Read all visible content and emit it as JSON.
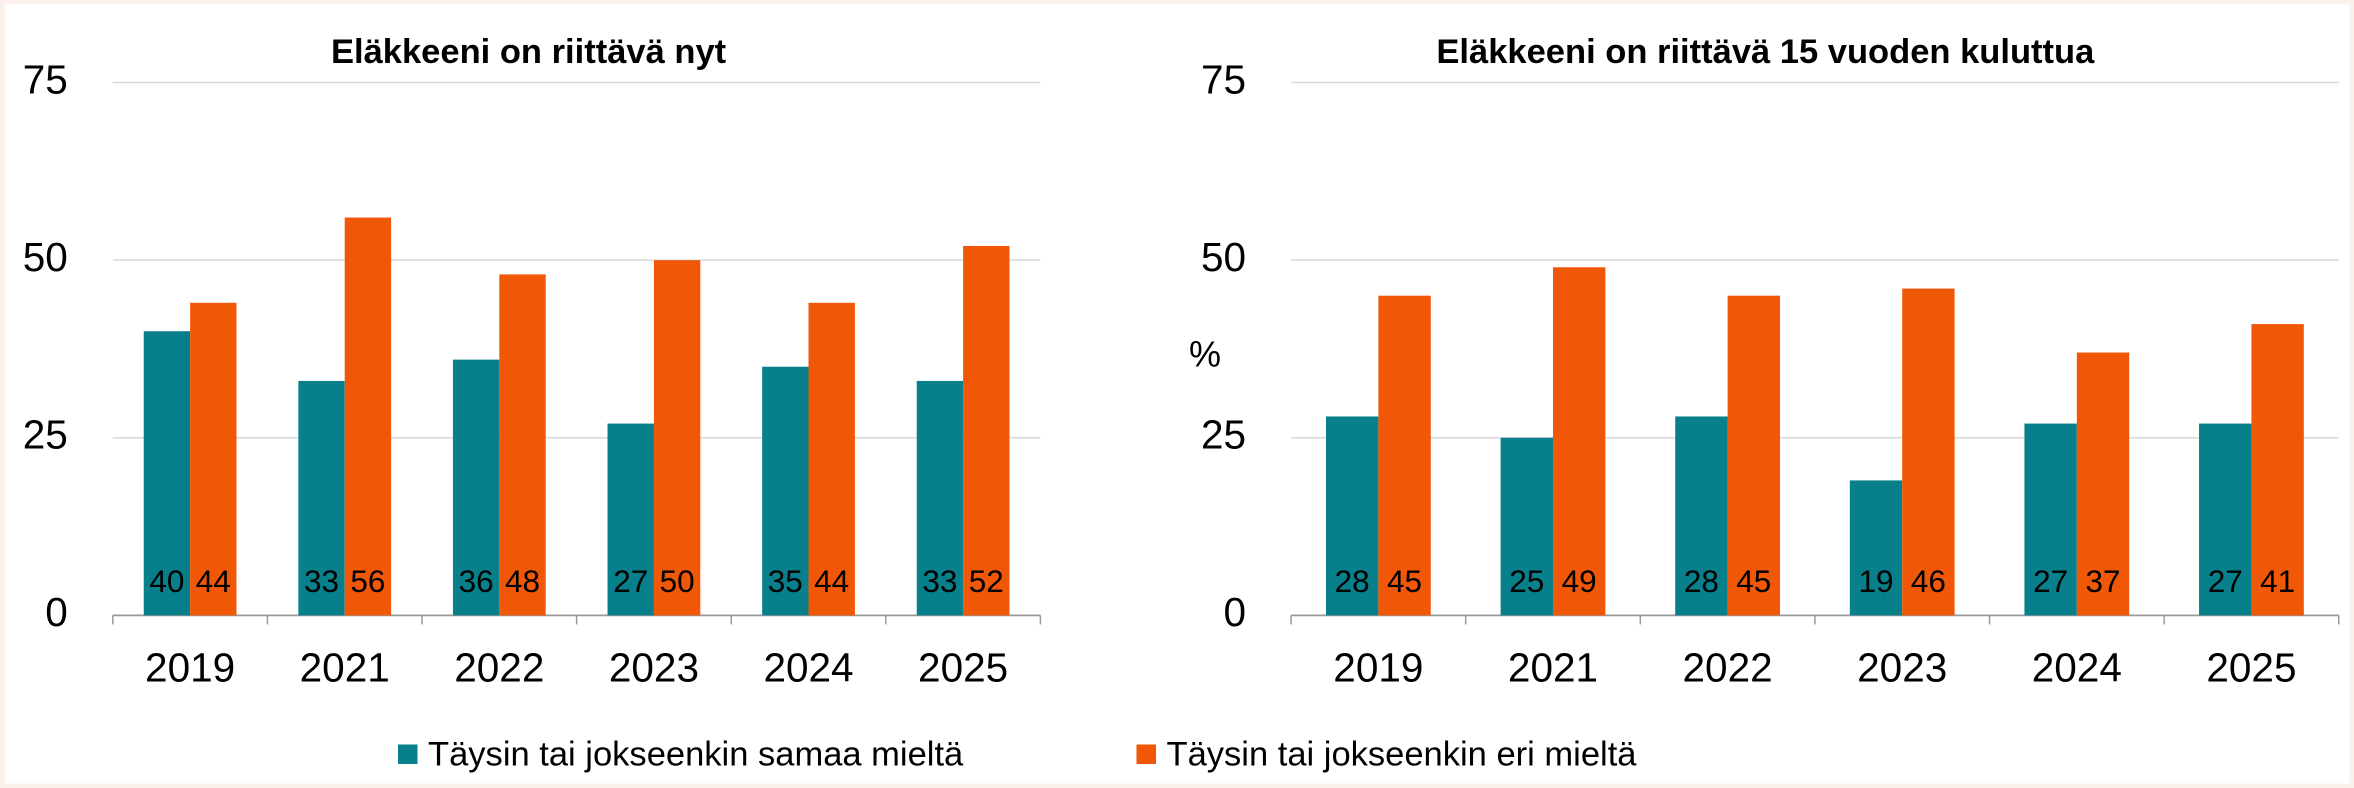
{
  "chart_data": [
    {
      "type": "bar",
      "title": "Eläkkeeni on riittävä nyt",
      "categories": [
        "2019",
        "2021",
        "2022",
        "2023",
        "2024",
        "2025"
      ],
      "series": [
        {
          "name": "Täysin tai jokseenkin samaa mieltä",
          "color": "#07808b",
          "values": [
            40,
            33,
            36,
            27,
            35,
            33
          ]
        },
        {
          "name": "Täysin tai jokseenkin eri mieltä",
          "color": "#f05707",
          "values": [
            44,
            56,
            48,
            50,
            44,
            52
          ]
        }
      ],
      "ylim": [
        0,
        75
      ],
      "yticks": [
        0,
        25,
        50,
        75
      ],
      "grid": true
    },
    {
      "type": "bar",
      "title": "Eläkkeeni on riittävä 15 vuoden kuluttua",
      "ylabel": "%",
      "categories": [
        "2019",
        "2021",
        "2022",
        "2023",
        "2024",
        "2025"
      ],
      "series": [
        {
          "name": "Täysin tai jokseenkin samaa mieltä",
          "color": "#07808b",
          "values": [
            28,
            25,
            28,
            19,
            27,
            27
          ]
        },
        {
          "name": "Täysin tai jokseenkin eri mieltä",
          "color": "#f05707",
          "values": [
            45,
            49,
            45,
            46,
            37,
            41
          ]
        }
      ],
      "ylim": [
        0,
        75
      ],
      "yticks": [
        0,
        25,
        50,
        75
      ],
      "grid": true
    }
  ]
}
